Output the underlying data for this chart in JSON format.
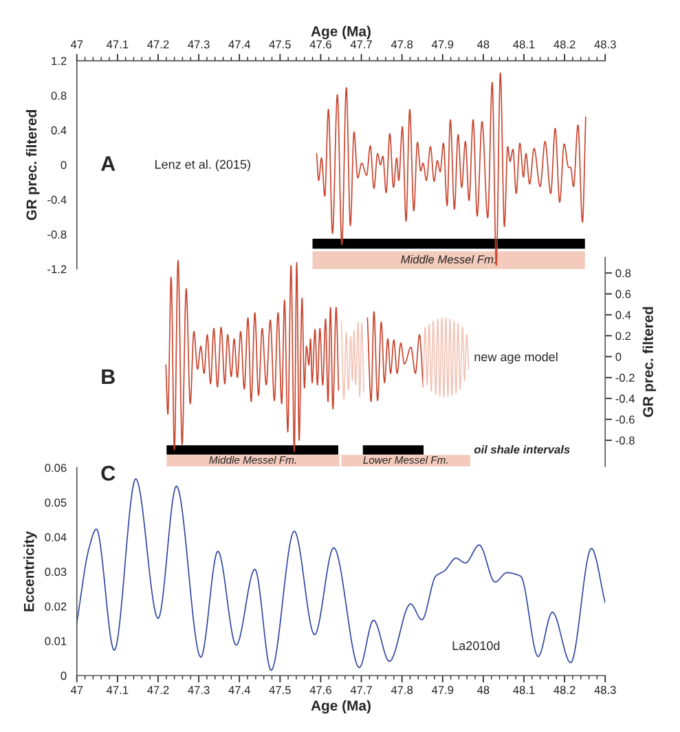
{
  "chart_data": [
    {
      "type": "line",
      "xlabel": "Age (Ma)",
      "ylabel": "GR prec. filtered",
      "xlim": [
        47,
        48.3
      ],
      "xticks": [
        47,
        47.1,
        47.2,
        47.3,
        47.4,
        47.5,
        47.6,
        47.7,
        47.8,
        47.9,
        48,
        48.1,
        48.2,
        48.3
      ],
      "ylim": [
        -1.2,
        1.2
      ],
      "yticks": [
        -1.2,
        -0.8,
        -0.4,
        0,
        0.4,
        0.8,
        1.2
      ],
      "grid": false,
      "annotations": [
        "A",
        "Lenz et al. (2015)"
      ],
      "bands": [
        {
          "axis": "x",
          "from": 47.581,
          "to": 48.249,
          "label": null,
          "color": "#000000"
        },
        {
          "axis": "x",
          "from": 47.581,
          "to": 48.249,
          "label": "Middle Messel Fm.",
          "color": "#f4cabd"
        }
      ],
      "series": [
        {
          "color": "#c9432c",
          "x": [
            47.59,
            47.595,
            47.602,
            47.61,
            47.619,
            47.629,
            47.641,
            47.652,
            47.663,
            47.673,
            47.682,
            47.691,
            47.701,
            47.713,
            47.722,
            47.731,
            47.74,
            47.747,
            47.753,
            47.761,
            47.77,
            47.779,
            47.787,
            47.792,
            47.801,
            47.81,
            47.819,
            47.829,
            47.838,
            47.846,
            47.852,
            47.86,
            47.87,
            47.879,
            47.887,
            47.894,
            47.902,
            47.911,
            47.919,
            47.929,
            47.938,
            47.947,
            47.956,
            47.965,
            47.975,
            47.985,
            47.997,
            48.011,
            48.022,
            48.032,
            48.042,
            48.052,
            48.06,
            48.066,
            48.073,
            48.081,
            48.09,
            48.099,
            48.105,
            48.114,
            48.125,
            48.14,
            48.152,
            48.166,
            48.177,
            48.188,
            48.199,
            48.21,
            48.215,
            48.222,
            48.233,
            48.244,
            48.252
          ],
          "values": [
            0.13,
            -0.18,
            0.08,
            -0.36,
            0.64,
            -0.79,
            0.81,
            -0.92,
            0.89,
            -0.7,
            0.38,
            -0.15,
            0.02,
            -0.12,
            0.22,
            -0.27,
            0.13,
            0,
            0.1,
            -0.32,
            0.36,
            -0.26,
            0.08,
            -0.18,
            0.44,
            -0.65,
            0.64,
            -0.53,
            0.26,
            -0.07,
            0.02,
            -0.18,
            0.21,
            -0.19,
            0.05,
            -0.08,
            0.25,
            -0.47,
            0.52,
            -0.51,
            0.35,
            -0.26,
            0.27,
            -0.41,
            0.52,
            -0.59,
            0.5,
            -0.61,
            0.95,
            -1.16,
            1.06,
            -0.71,
            0.21,
            0.04,
            0.18,
            -0.33,
            0.25,
            -0.14,
            0.13,
            -0.22,
            0.19,
            -0.25,
            0.27,
            -0.33,
            0.42,
            -0.43,
            0.24,
            -0.03,
            -0.03,
            -0.25,
            0.46,
            -0.66,
            0.55
          ]
        }
      ]
    },
    {
      "type": "line",
      "y2label": "GR prec. filtered",
      "xlim": [
        47,
        48.3
      ],
      "y2lim": [
        -1.05,
        0.95
      ],
      "y2ticks": [
        -0.8,
        -0.6,
        -0.4,
        -0.2,
        0,
        0.2,
        0.4,
        0.6,
        0.8
      ],
      "tick_labels": "y",
      "grid": false,
      "annotations": [
        "B",
        "new age model",
        "oil shale intervals"
      ],
      "bands": [
        {
          "axis": "x",
          "from": 47.222,
          "to": 47.642,
          "label": null,
          "color": "#000000"
        },
        {
          "axis": "x",
          "from": 47.705,
          "to": 47.852,
          "label": null,
          "color": "#000000"
        },
        {
          "axis": "x",
          "from": 47.222,
          "to": 47.645,
          "label": "Middle Messel Fm.",
          "color": "#f4cabd"
        },
        {
          "axis": "x",
          "from": 47.652,
          "to": 47.967,
          "label": "Lower Messel Fm.",
          "color": "#f4cabd"
        }
      ],
      "series": [
        {
          "axis": "y2",
          "color": "#c9432c",
          "x": [
            47.219,
            47.224,
            47.232,
            47.24,
            47.249,
            47.259,
            47.269,
            47.279,
            47.288,
            47.297,
            47.305,
            47.313,
            47.321,
            47.329,
            47.337,
            47.346,
            47.355,
            47.364,
            47.371,
            47.38,
            47.387,
            47.395,
            47.403,
            47.412,
            47.421,
            47.429,
            47.438,
            47.447,
            47.456,
            47.466,
            47.476,
            47.486,
            47.495,
            47.504,
            47.511,
            47.519,
            47.527,
            47.535,
            47.541,
            47.547,
            47.554,
            47.56,
            47.565,
            47.571,
            47.575,
            47.579,
            47.586,
            47.592,
            47.598,
            47.605,
            47.612,
            47.618,
            47.624,
            47.63,
            47.638,
            47.644
          ],
          "values": [
            -0.08,
            -0.55,
            0.76,
            -0.89,
            0.92,
            -0.84,
            0.65,
            -0.45,
            0.24,
            -0.12,
            0.1,
            -0.16,
            0.21,
            -0.26,
            0.27,
            -0.29,
            0.28,
            -0.26,
            0.21,
            -0.19,
            0.17,
            -0.2,
            0.24,
            -0.31,
            0.37,
            -0.43,
            0.42,
            -0.37,
            0.27,
            -0.27,
            0.35,
            -0.42,
            0.42,
            -0.45,
            0.54,
            -0.72,
            0.87,
            -0.91,
            0.9,
            -0.8,
            0.56,
            -0.3,
            0.1,
            -0.08,
            0.17,
            -0.25,
            0.26,
            -0.27,
            0.27,
            -0.27,
            0.36,
            -0.43,
            0.47,
            -0.5,
            0.47,
            -0.32
          ]
        },
        {
          "axis": "y2",
          "color": "#f2c4b6",
          "x": [
            47.651,
            47.657,
            47.663,
            47.668,
            47.674,
            47.678,
            47.682,
            47.686,
            47.692,
            47.696,
            47.701,
            47.706
          ],
          "values": [
            0.34,
            -0.41,
            0.23,
            -0.32,
            0.19,
            -0.23,
            0.25,
            -0.27,
            0.33,
            -0.38,
            0.32,
            -0.34
          ]
        },
        {
          "axis": "y2",
          "color": "#c9432c",
          "x": [
            47.715,
            47.724,
            47.731,
            47.74,
            47.749,
            47.757,
            47.765,
            47.772,
            47.78,
            47.788,
            47.797,
            47.806,
            47.822,
            47.833,
            47.843,
            47.852
          ],
          "values": [
            0.37,
            -0.43,
            0.43,
            -0.42,
            0.33,
            -0.25,
            0.17,
            -0.16,
            0.16,
            -0.16,
            0.13,
            -0.07,
            0.09,
            -0.16,
            0.21,
            -0.29
          ]
        },
        {
          "axis": "y2",
          "color": "#f2c4b6",
          "x": [
            47.852,
            47.857,
            47.862,
            47.867,
            47.872,
            47.877,
            47.883,
            47.888,
            47.893,
            47.898,
            47.903,
            47.908,
            47.913,
            47.918,
            47.923,
            47.928,
            47.933,
            47.938,
            47.943,
            47.949,
            47.954,
            47.959,
            47.964
          ],
          "values": [
            -0.29,
            0.28,
            -0.27,
            0.31,
            -0.33,
            0.34,
            -0.36,
            0.36,
            -0.38,
            0.37,
            -0.39,
            0.37,
            -0.38,
            0.36,
            -0.37,
            0.34,
            -0.35,
            0.32,
            -0.31,
            0.28,
            -0.23,
            0.21,
            -0.12
          ]
        }
      ]
    },
    {
      "type": "line",
      "xlabel": "Age (Ma)",
      "ylabel": "Eccentricity",
      "xlim": [
        47,
        48.3
      ],
      "xticks": [
        47,
        47.1,
        47.2,
        47.3,
        47.4,
        47.5,
        47.6,
        47.7,
        47.8,
        47.9,
        48,
        48.1,
        48.2,
        48.3
      ],
      "ylim": [
        0,
        0.06
      ],
      "yticks": [
        0,
        0.01,
        0.02,
        0.03,
        0.04,
        0.05,
        0.06
      ],
      "grid": false,
      "annotations": [
        "C",
        "La2010d"
      ],
      "series": [
        {
          "color": "#2e45a0",
          "x": [
            47.0,
            47.03,
            47.048,
            47.092,
            47.145,
            47.2,
            47.245,
            47.305,
            47.347,
            47.392,
            47.438,
            47.478,
            47.535,
            47.585,
            47.632,
            47.695,
            47.73,
            47.769,
            47.821,
            47.849,
            47.883,
            47.905,
            47.933,
            47.956,
            47.99,
            48.029,
            48.058,
            48.092,
            48.135,
            48.17,
            48.215,
            48.266,
            48.3
          ],
          "values": [
            0.0153,
            0.0368,
            0.0423,
            0.0073,
            0.0568,
            0.0165,
            0.0547,
            0.0053,
            0.0359,
            0.0088,
            0.0307,
            0.0015,
            0.0417,
            0.0118,
            0.0369,
            0.0023,
            0.016,
            0.0041,
            0.0207,
            0.0161,
            0.0287,
            0.0303,
            0.0339,
            0.0325,
            0.0377,
            0.027,
            0.0297,
            0.0287,
            0.0055,
            0.0183,
            0.0037,
            0.0367,
            0.021
          ]
        }
      ]
    }
  ]
}
